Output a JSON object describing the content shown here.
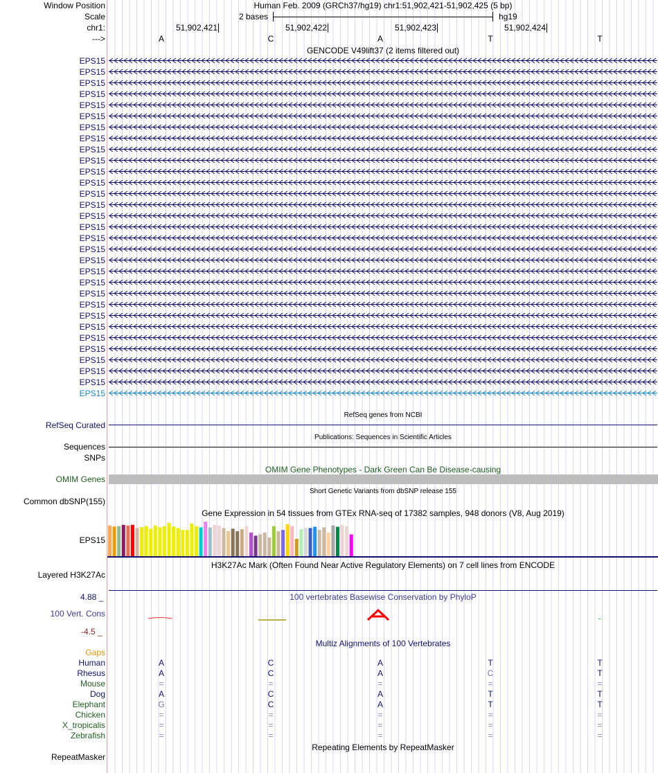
{
  "header": {
    "window_position_label": "Window Position",
    "title": "Human Feb. 2009 (GRCh37/hg19)   chr1:51,902,421-51,902,425 (5 bp)",
    "scale_label": "Scale",
    "scale_text": "2 bases",
    "assembly": "hg19",
    "chrom_label": "chr1:",
    "positions": [
      "51,902,421",
      "51,902,422",
      "51,902,423",
      "51,902,424"
    ],
    "strand_label": "--->",
    "bases": [
      "A",
      "C",
      "A",
      "T",
      "T"
    ]
  },
  "gencode": {
    "title": "GENCODE V49lift37 (2 items filtered out)",
    "gene_label": "EPS15",
    "row_count": 31,
    "highlighted_row": 30,
    "color": "#10106e",
    "highlight_color": "#1a86c8"
  },
  "refseq": {
    "label": "RefSeq Curated",
    "title": "RefSeq genes from NCBI"
  },
  "publications": {
    "label": "Sequences",
    "title": "Publications: Sequences in Scientific Articles"
  },
  "snps": {
    "label": "SNPs"
  },
  "omim": {
    "label": "OMIM Genes",
    "title": "OMIM Gene Phenotypes - Dark Green Can Be Disease-causing"
  },
  "dbsnp": {
    "label": "Common dbSNP(155)",
    "title": "Short Genetic Variants from dbSNP release 155"
  },
  "gtex": {
    "title": "Gene Expression in 54 tissues from GTEx RNA-seq of 17382 samples, 948 donors (V8, Aug 2019)",
    "label": "EPS15",
    "values": [
      145,
      140,
      142,
      148,
      145,
      148,
      133,
      137,
      142,
      130,
      145,
      137,
      142,
      157,
      140,
      133,
      124,
      124,
      154,
      142,
      136,
      163,
      136,
      148,
      145,
      133,
      118,
      130,
      118,
      127,
      142,
      112,
      97,
      103,
      112,
      88,
      142,
      118,
      124,
      151,
      142,
      82,
      127,
      133,
      133,
      139,
      124,
      136,
      112,
      145,
      139,
      148,
      142,
      103
    ],
    "colors": [
      "#FFA54F",
      "#EE9A00",
      "#8FBC8F",
      "#8B1C62",
      "#EE6A50",
      "#FF0000",
      "#CDB79E",
      "#EEEE00",
      "#EEEE00",
      "#EEEE00",
      "#EEEE00",
      "#EEEE00",
      "#EEEE00",
      "#EEEE00",
      "#EEEE00",
      "#EEEE00",
      "#EEEE00",
      "#EEEE00",
      "#EEEE00",
      "#EEEE00",
      "#00CED1",
      "#EE82EE",
      "#9AC0CD",
      "#EED5D2",
      "#EED5D2",
      "#CDB79E",
      "#EEC591",
      "#8B7355",
      "#8B7355",
      "#CDAA7D",
      "#EED5D2",
      "#B452CD",
      "#7A378B",
      "#CDB79E",
      "#CDB79E",
      "#CDB79E",
      "#9ACD32",
      "#CDB79E",
      "#7B68EE",
      "#FFD700",
      "#FFB6C1",
      "#CD9B1D",
      "#B4EEB4",
      "#D9D9D9",
      "#3A5FCD",
      "#1E90FF",
      "#CDB79E",
      "#CDB79E",
      "#FFD39B",
      "#A6A6A6",
      "#008B45",
      "#EED5D2",
      "#EED5D2",
      "#FF00FF"
    ]
  },
  "h3k27ac": {
    "label": "Layered H3K27Ac",
    "title": "H3K27Ac Mark (Often Found Near Active Regulatory Elements) on 7 cell lines from ENCODE"
  },
  "phylop": {
    "label": "100 Vert. Cons",
    "title": "100 vertebrates Basewise Conservation by PhyloP",
    "max": "4.88 _",
    "min": "-4.5 _"
  },
  "multiz": {
    "title": "Multiz Alignments of 100 Vertebrates",
    "gaps_label": "Gaps",
    "species": [
      {
        "name": "Human",
        "bases": [
          "A",
          "C",
          "A",
          "T",
          "T"
        ]
      },
      {
        "name": "Rhesus",
        "bases": [
          "A",
          "C",
          "A",
          "C",
          "T"
        ]
      },
      {
        "name": "Mouse",
        "bases": [
          "=",
          "=",
          "=",
          "=",
          "="
        ]
      },
      {
        "name": "Dog",
        "bases": [
          "A",
          "C",
          "A",
          "T",
          "T"
        ]
      },
      {
        "name": "Elephant",
        "bases": [
          "G",
          "C",
          "A",
          "T",
          "T"
        ]
      },
      {
        "name": "Chicken",
        "bases": [
          "=",
          "=",
          "=",
          "=",
          "="
        ]
      },
      {
        "name": "X_tropicalis",
        "bases": [
          "=",
          "=",
          "=",
          "=",
          "="
        ]
      },
      {
        "name": "Zebrafish",
        "bases": [
          "=",
          "=",
          "=",
          "=",
          "="
        ]
      }
    ]
  },
  "repeatmasker": {
    "label": "RepeatMasker",
    "title": "Repeating Elements by RepeatMasker"
  }
}
